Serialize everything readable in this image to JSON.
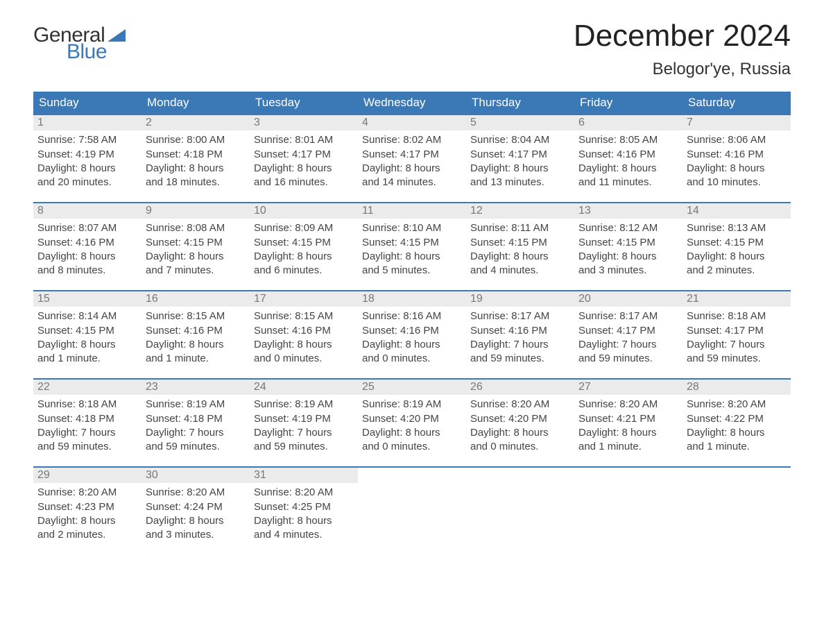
{
  "logo": {
    "general": "General",
    "blue": "Blue",
    "shape_color": "#3a78b6"
  },
  "title": "December 2024",
  "location": "Belogor'ye, Russia",
  "header_bg": "#3a78b6",
  "header_fg": "#ffffff",
  "day_number_bg": "#ebebeb",
  "day_number_fg": "#777777",
  "cell_border_color": "#3a78b6",
  "text_color": "#444444",
  "columns": [
    "Sunday",
    "Monday",
    "Tuesday",
    "Wednesday",
    "Thursday",
    "Friday",
    "Saturday"
  ],
  "weeks": [
    [
      {
        "n": "1",
        "sunrise": "7:58 AM",
        "sunset": "4:19 PM",
        "daylight": "8 hours",
        "and": "and 20 minutes."
      },
      {
        "n": "2",
        "sunrise": "8:00 AM",
        "sunset": "4:18 PM",
        "daylight": "8 hours",
        "and": "and 18 minutes."
      },
      {
        "n": "3",
        "sunrise": "8:01 AM",
        "sunset": "4:17 PM",
        "daylight": "8 hours",
        "and": "and 16 minutes."
      },
      {
        "n": "4",
        "sunrise": "8:02 AM",
        "sunset": "4:17 PM",
        "daylight": "8 hours",
        "and": "and 14 minutes."
      },
      {
        "n": "5",
        "sunrise": "8:04 AM",
        "sunset": "4:17 PM",
        "daylight": "8 hours",
        "and": "and 13 minutes."
      },
      {
        "n": "6",
        "sunrise": "8:05 AM",
        "sunset": "4:16 PM",
        "daylight": "8 hours",
        "and": "and 11 minutes."
      },
      {
        "n": "7",
        "sunrise": "8:06 AM",
        "sunset": "4:16 PM",
        "daylight": "8 hours",
        "and": "and 10 minutes."
      }
    ],
    [
      {
        "n": "8",
        "sunrise": "8:07 AM",
        "sunset": "4:16 PM",
        "daylight": "8 hours",
        "and": "and 8 minutes."
      },
      {
        "n": "9",
        "sunrise": "8:08 AM",
        "sunset": "4:15 PM",
        "daylight": "8 hours",
        "and": "and 7 minutes."
      },
      {
        "n": "10",
        "sunrise": "8:09 AM",
        "sunset": "4:15 PM",
        "daylight": "8 hours",
        "and": "and 6 minutes."
      },
      {
        "n": "11",
        "sunrise": "8:10 AM",
        "sunset": "4:15 PM",
        "daylight": "8 hours",
        "and": "and 5 minutes."
      },
      {
        "n": "12",
        "sunrise": "8:11 AM",
        "sunset": "4:15 PM",
        "daylight": "8 hours",
        "and": "and 4 minutes."
      },
      {
        "n": "13",
        "sunrise": "8:12 AM",
        "sunset": "4:15 PM",
        "daylight": "8 hours",
        "and": "and 3 minutes."
      },
      {
        "n": "14",
        "sunrise": "8:13 AM",
        "sunset": "4:15 PM",
        "daylight": "8 hours",
        "and": "and 2 minutes."
      }
    ],
    [
      {
        "n": "15",
        "sunrise": "8:14 AM",
        "sunset": "4:15 PM",
        "daylight": "8 hours",
        "and": "and 1 minute."
      },
      {
        "n": "16",
        "sunrise": "8:15 AM",
        "sunset": "4:16 PM",
        "daylight": "8 hours",
        "and": "and 1 minute."
      },
      {
        "n": "17",
        "sunrise": "8:15 AM",
        "sunset": "4:16 PM",
        "daylight": "8 hours",
        "and": "and 0 minutes."
      },
      {
        "n": "18",
        "sunrise": "8:16 AM",
        "sunset": "4:16 PM",
        "daylight": "8 hours",
        "and": "and 0 minutes."
      },
      {
        "n": "19",
        "sunrise": "8:17 AM",
        "sunset": "4:16 PM",
        "daylight": "7 hours",
        "and": "and 59 minutes."
      },
      {
        "n": "20",
        "sunrise": "8:17 AM",
        "sunset": "4:17 PM",
        "daylight": "7 hours",
        "and": "and 59 minutes."
      },
      {
        "n": "21",
        "sunrise": "8:18 AM",
        "sunset": "4:17 PM",
        "daylight": "7 hours",
        "and": "and 59 minutes."
      }
    ],
    [
      {
        "n": "22",
        "sunrise": "8:18 AM",
        "sunset": "4:18 PM",
        "daylight": "7 hours",
        "and": "and 59 minutes."
      },
      {
        "n": "23",
        "sunrise": "8:19 AM",
        "sunset": "4:18 PM",
        "daylight": "7 hours",
        "and": "and 59 minutes."
      },
      {
        "n": "24",
        "sunrise": "8:19 AM",
        "sunset": "4:19 PM",
        "daylight": "7 hours",
        "and": "and 59 minutes."
      },
      {
        "n": "25",
        "sunrise": "8:19 AM",
        "sunset": "4:20 PM",
        "daylight": "8 hours",
        "and": "and 0 minutes."
      },
      {
        "n": "26",
        "sunrise": "8:20 AM",
        "sunset": "4:20 PM",
        "daylight": "8 hours",
        "and": "and 0 minutes."
      },
      {
        "n": "27",
        "sunrise": "8:20 AM",
        "sunset": "4:21 PM",
        "daylight": "8 hours",
        "and": "and 1 minute."
      },
      {
        "n": "28",
        "sunrise": "8:20 AM",
        "sunset": "4:22 PM",
        "daylight": "8 hours",
        "and": "and 1 minute."
      }
    ],
    [
      {
        "n": "29",
        "sunrise": "8:20 AM",
        "sunset": "4:23 PM",
        "daylight": "8 hours",
        "and": "and 2 minutes."
      },
      {
        "n": "30",
        "sunrise": "8:20 AM",
        "sunset": "4:24 PM",
        "daylight": "8 hours",
        "and": "and 3 minutes."
      },
      {
        "n": "31",
        "sunrise": "8:20 AM",
        "sunset": "4:25 PM",
        "daylight": "8 hours",
        "and": "and 4 minutes."
      },
      null,
      null,
      null,
      null
    ]
  ],
  "labels": {
    "sunrise": "Sunrise:",
    "sunset": "Sunset:",
    "daylight": "Daylight:"
  }
}
